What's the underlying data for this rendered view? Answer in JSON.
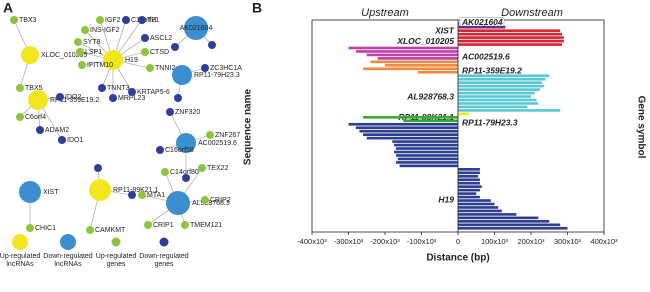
{
  "panel_a": {
    "letter": "A",
    "legend": [
      {
        "lines": [
          "Up-regulated",
          "lncRNAs"
        ],
        "color": "#f4e61e"
      },
      {
        "lines": [
          "Down-regulated",
          "lncRNAs"
        ],
        "color": "#3b8fd0"
      },
      {
        "lines": [
          "Up-regulated",
          "genes"
        ],
        "color": "#8cc63f"
      },
      {
        "lines": [
          "Down-regulated",
          "genes"
        ],
        "color": "#2e3f9a"
      }
    ],
    "nodes": [
      {
        "label": "H19",
        "kind": 0
      },
      {
        "label": "XLOC_010205",
        "kind": 0
      },
      {
        "label": "RP11-359E19.2",
        "kind": 0
      },
      {
        "label": "RP11-89K21.1",
        "kind": 0
      },
      {
        "label": "AK021604",
        "kind": 1
      },
      {
        "label": "RP11-79H23.3",
        "kind": 1
      },
      {
        "label": "AC002519.6",
        "kind": 1
      },
      {
        "label": "XIST",
        "kind": 1
      },
      {
        "label": "AL928768.3",
        "kind": 1
      },
      {
        "label": "TBX3",
        "kind": 2
      },
      {
        "label": "TBX5",
        "kind": 2
      },
      {
        "label": "IGF2",
        "kind": 2
      },
      {
        "label": "C11orf21",
        "kind": 3
      },
      {
        "label": "TH",
        "kind": 3
      },
      {
        "label": "INS-IGF2",
        "kind": 2
      },
      {
        "label": "SYT8",
        "kind": 2
      },
      {
        "label": "ASCL2",
        "kind": 3
      },
      {
        "label": "LSP1",
        "kind": 2
      },
      {
        "label": "CTSD",
        "kind": 2
      },
      {
        "label": "IFITM10",
        "kind": 2
      },
      {
        "label": "TNNI2",
        "kind": 2
      },
      {
        "label": "TNNT3",
        "kind": 3
      },
      {
        "label": "MRPL23",
        "kind": 3
      },
      {
        "label": "KRTAP5-6",
        "kind": 3
      },
      {
        "label": "ZC3HC1A",
        "kind": 3
      },
      {
        "label": "C6orf4",
        "kind": 2
      },
      {
        "label": "IDO2",
        "kind": 3
      },
      {
        "label": "IDO1",
        "kind": 3
      },
      {
        "label": "ADAM2",
        "kind": 3
      },
      {
        "label": "ZNF320",
        "kind": 3
      },
      {
        "label": "ZNF267",
        "kind": 2
      },
      {
        "label": "C16orf58",
        "kind": 3
      },
      {
        "label": "CHIC1",
        "kind": 2
      },
      {
        "label": "CAMKMT",
        "kind": 2
      },
      {
        "label": "C14orf80",
        "kind": 2
      },
      {
        "label": "TEX22",
        "kind": 2
      },
      {
        "label": "MTA1",
        "kind": 2
      },
      {
        "label": "CRIP2",
        "kind": 2
      },
      {
        "label": "CRIP1",
        "kind": 2
      },
      {
        "label": "TMEM121",
        "kind": 2
      }
    ]
  },
  "chart_data": {
    "type": "bar",
    "letter": "B",
    "headers": [
      "Upstream",
      "Downstream"
    ],
    "xlabel": "Distance (bp)",
    "ylabel": "Sequence name",
    "y2label": "Gene symbol",
    "xlim": [
      -400000,
      400000
    ],
    "xticks": [
      {
        "value": -400000,
        "label": "-400x10³"
      },
      {
        "value": -300000,
        "label": "-300x10³"
      },
      {
        "value": -200000,
        "label": "-200x10³"
      },
      {
        "value": -100000,
        "label": "-100x10³"
      },
      0,
      {
        "value": 100000,
        "label": "100x10³"
      },
      {
        "value": 200000,
        "label": "200x10³"
      },
      {
        "value": 300000,
        "label": "300x10³"
      },
      {
        "value": 400000,
        "label": "400x10³"
      }
    ],
    "groups": [
      {
        "name": "AK021604",
        "color": "#6a2c8a",
        "values": [
          3000
        ]
      },
      {
        "name": "XIST",
        "color": "#6a2c8a",
        "values": [
          130000
        ]
      },
      {
        "name": "XLOC_010205",
        "color": "#d9252f",
        "values": [
          280000,
          285000,
          290000,
          290000,
          285000
        ]
      },
      {
        "name": "AC002519.6",
        "color": "#c23fa5",
        "values": [
          -300000,
          -280000,
          -250000,
          -220000
        ]
      },
      {
        "name": "RP11-359E19.2",
        "color": "#f08a3c",
        "values": [
          -240000,
          -200000,
          -260000,
          -110000
        ]
      },
      {
        "name": "AL928768.3",
        "color": "#5bc8d8",
        "values": [
          250000,
          240000,
          230000,
          235000,
          225000,
          210000,
          200000,
          215000,
          220000,
          190000,
          280000
        ]
      },
      {
        "name": "RP11-89K21.1",
        "color": "#f4e61e",
        "values": [
          30000
        ]
      },
      {
        "name": "RP11-79H23.3",
        "color": "#3aaa35",
        "values": [
          -260000,
          -150000
        ]
      },
      {
        "name": "H19",
        "color": "#2e3f8f",
        "values": [
          -300000,
          -280000,
          -270000,
          -260000,
          -250000,
          -180000,
          -175000,
          -170000,
          -175000,
          -170000,
          -165000,
          -170000,
          -160000,
          60000,
          60000,
          55000,
          60000,
          60000,
          65000,
          60000,
          50000,
          60000,
          90000,
          100000,
          110000,
          120000,
          160000,
          220000,
          250000,
          280000,
          300000
        ]
      }
    ]
  }
}
